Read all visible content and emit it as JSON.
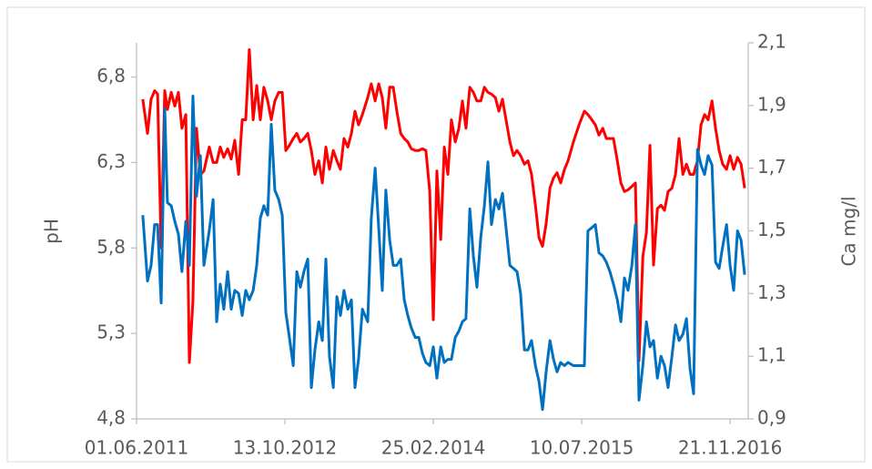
{
  "chart_data": {
    "type": "line",
    "ylabel": "pH",
    "y2label": "Ca mg/l",
    "x": [
      "2011-06-22",
      "2011-07-08",
      "2011-07-20",
      "2011-08-01",
      "2011-08-11",
      "2011-08-23",
      "2011-09-04",
      "2011-09-13",
      "2011-09-26",
      "2011-10-08",
      "2011-10-20",
      "2011-11-01",
      "2011-11-14",
      "2011-11-26",
      "2011-12-08",
      "2011-12-20",
      "2012-01-02",
      "2012-01-14",
      "2012-02-01",
      "2012-02-14",
      "2012-02-26",
      "2012-03-09",
      "2012-03-21",
      "2012-04-03",
      "2012-04-15",
      "2012-04-27",
      "2012-05-10",
      "2012-05-22",
      "2012-06-03",
      "2012-06-15",
      "2012-06-28",
      "2012-07-10",
      "2012-07-22",
      "2012-08-03",
      "2012-08-16",
      "2012-08-28",
      "2012-09-09",
      "2012-09-22",
      "2012-10-04",
      "2012-10-16",
      "2012-10-28",
      "2012-11-10",
      "2012-11-22",
      "2012-12-04",
      "2012-12-16",
      "2012-12-29",
      "2013-01-10",
      "2013-01-22",
      "2013-02-04",
      "2013-02-16",
      "2013-02-28",
      "2013-03-12",
      "2013-03-25",
      "2013-04-06",
      "2013-04-18",
      "2013-04-30",
      "2013-05-13",
      "2013-05-25",
      "2013-06-06",
      "2013-06-18",
      "2013-07-01",
      "2013-07-19",
      "2013-07-31",
      "2013-08-13",
      "2013-08-25",
      "2013-09-06",
      "2013-09-18",
      "2013-10-01",
      "2013-10-13",
      "2013-10-25",
      "2013-11-07",
      "2013-11-19",
      "2013-12-01",
      "2013-12-13",
      "2013-12-26",
      "2014-01-07",
      "2014-01-19",
      "2014-01-31",
      "2014-02-13",
      "2014-02-25",
      "2014-03-09",
      "2014-03-22",
      "2014-04-03",
      "2014-04-15",
      "2014-04-27",
      "2014-05-10",
      "2014-05-22",
      "2014-06-03",
      "2014-06-15",
      "2014-06-28",
      "2014-07-10",
      "2014-07-22",
      "2014-08-04",
      "2014-08-16",
      "2014-08-28",
      "2014-09-09",
      "2014-09-22",
      "2014-10-04",
      "2014-10-16",
      "2014-10-28",
      "2014-11-10",
      "2014-11-22",
      "2014-12-04",
      "2014-12-16",
      "2014-12-29",
      "2015-01-10",
      "2015-01-22",
      "2015-02-04",
      "2015-02-16",
      "2015-02-28",
      "2015-03-12",
      "2015-03-25",
      "2015-04-06",
      "2015-04-18",
      "2015-04-30",
      "2015-05-13",
      "2015-05-25",
      "2015-06-12",
      "2015-07-01",
      "2015-07-19",
      "2015-07-31",
      "2015-08-13",
      "2015-08-25",
      "2015-09-06",
      "2015-09-19",
      "2015-10-01",
      "2015-10-13",
      "2015-10-25",
      "2015-11-07",
      "2015-11-19",
      "2015-12-01",
      "2015-12-13",
      "2015-12-26",
      "2016-01-07",
      "2016-01-19",
      "2016-02-01",
      "2016-02-13",
      "2016-02-25",
      "2016-03-08",
      "2016-03-21",
      "2016-04-02",
      "2016-04-14",
      "2016-04-26",
      "2016-05-09",
      "2016-05-21",
      "2016-06-02",
      "2016-06-15",
      "2016-06-27",
      "2016-07-09",
      "2016-07-21",
      "2016-08-03",
      "2016-08-15",
      "2016-08-27",
      "2016-09-08",
      "2016-09-21",
      "2016-10-03",
      "2016-10-15",
      "2016-10-27",
      "2016-11-09",
      "2016-11-21",
      "2016-12-03",
      "2016-12-16",
      "2016-12-28",
      "2017-01-09"
    ],
    "series": [
      {
        "color": "#ff0000",
        "axis": "y",
        "values": [
          6.67,
          6.47,
          6.67,
          6.72,
          6.7,
          5.8,
          6.72,
          6.61,
          6.71,
          6.63,
          6.71,
          6.5,
          6.58,
          5.13,
          5.49,
          6.5,
          6.23,
          6.25,
          6.39,
          6.3,
          6.3,
          6.39,
          6.33,
          6.38,
          6.32,
          6.43,
          6.23,
          6.55,
          6.55,
          6.96,
          6.55,
          6.75,
          6.55,
          6.74,
          6.66,
          6.55,
          6.66,
          6.71,
          6.71,
          6.37,
          6.4,
          6.44,
          6.47,
          6.42,
          6.44,
          6.47,
          6.37,
          6.23,
          6.31,
          6.18,
          6.39,
          6.26,
          6.37,
          6.31,
          6.26,
          6.44,
          6.39,
          6.47,
          6.6,
          6.52,
          6.58,
          6.68,
          6.76,
          6.66,
          6.76,
          6.68,
          6.5,
          6.74,
          6.74,
          6.6,
          6.47,
          6.44,
          6.42,
          6.38,
          6.37,
          6.37,
          6.38,
          6.37,
          6.13,
          5.38,
          6.25,
          5.85,
          6.39,
          6.23,
          6.55,
          6.42,
          6.5,
          6.66,
          6.5,
          6.74,
          6.71,
          6.66,
          6.66,
          6.74,
          6.71,
          6.7,
          6.68,
          6.6,
          6.67,
          6.55,
          6.42,
          6.34,
          6.37,
          6.34,
          6.29,
          6.31,
          6.23,
          6.05,
          5.86,
          5.81,
          5.94,
          6.15,
          6.21,
          6.24,
          6.18,
          6.26,
          6.31,
          6.42,
          6.52,
          6.6,
          6.58,
          6.55,
          6.52,
          6.46,
          6.5,
          6.44,
          6.44,
          6.44,
          6.31,
          6.18,
          6.13,
          6.14,
          6.16,
          6.18,
          5.14,
          5.75,
          5.89,
          6.4,
          5.7,
          6.03,
          6.05,
          6.02,
          6.13,
          6.15,
          6.23,
          6.44,
          6.23,
          6.29,
          6.23,
          6.23,
          6.31,
          6.52,
          6.58,
          6.55,
          6.66,
          6.5,
          6.37,
          6.29,
          6.26,
          6.34,
          6.26,
          6.33,
          6.29,
          6.15
        ]
      },
      {
        "color": "#0070c0",
        "axis": "y2",
        "values": [
          1.55,
          1.34,
          1.39,
          1.52,
          1.52,
          1.27,
          1.89,
          1.59,
          1.58,
          1.53,
          1.49,
          1.37,
          1.53,
          1.39,
          1.93,
          1.61,
          1.74,
          1.39,
          1.5,
          1.6,
          1.21,
          1.33,
          1.25,
          1.37,
          1.25,
          1.31,
          1.3,
          1.23,
          1.31,
          1.28,
          1.31,
          1.39,
          1.54,
          1.58,
          1.55,
          1.84,
          1.63,
          1.6,
          1.55,
          1.24,
          1.16,
          1.07,
          1.37,
          1.32,
          1.37,
          1.41,
          1.0,
          1.12,
          1.21,
          1.15,
          1.41,
          1.1,
          1.0,
          1.29,
          1.23,
          1.31,
          1.25,
          1.28,
          1.0,
          1.09,
          1.25,
          1.21,
          1.54,
          1.7,
          1.51,
          1.31,
          1.63,
          1.47,
          1.39,
          1.39,
          1.41,
          1.28,
          1.23,
          1.19,
          1.16,
          1.16,
          1.11,
          1.08,
          1.07,
          1.13,
          1.03,
          1.13,
          1.08,
          1.09,
          1.09,
          1.16,
          1.18,
          1.21,
          1.22,
          1.57,
          1.42,
          1.32,
          1.48,
          1.58,
          1.72,
          1.52,
          1.6,
          1.57,
          1.62,
          1.51,
          1.39,
          1.38,
          1.37,
          1.3,
          1.12,
          1.12,
          1.15,
          1.07,
          1.02,
          0.93,
          1.05,
          1.15,
          1.09,
          1.05,
          1.08,
          1.07,
          1.08,
          1.07,
          1.07,
          1.07,
          1.5,
          1.51,
          1.52,
          1.43,
          1.42,
          1.4,
          1.37,
          1.33,
          1.28,
          1.21,
          1.35,
          1.31,
          1.39,
          1.52,
          0.96,
          1.07,
          1.21,
          1.13,
          1.15,
          1.03,
          1.1,
          1.07,
          1.0,
          1.1,
          1.2,
          1.15,
          1.17,
          1.22,
          1.06,
          0.98,
          1.76,
          1.71,
          1.68,
          1.74,
          1.71,
          1.4,
          1.38,
          1.45,
          1.52,
          1.39,
          1.31,
          1.5,
          1.47,
          1.36
        ]
      }
    ],
    "xlim": [
      "2011-06-01",
      "2017-01-21"
    ],
    "xticks": [
      {
        "value": "2011-06-01",
        "label": "01.06.2011"
      },
      {
        "value": "2012-10-13",
        "label": "13.10.2012"
      },
      {
        "value": "2014-02-25",
        "label": "25.02.2014"
      },
      {
        "value": "2015-07-10",
        "label": "10.07.2015"
      },
      {
        "value": "2016-11-21",
        "label": "21.11.2016"
      }
    ],
    "ylim": [
      4.8,
      7.0
    ],
    "yticks": [
      {
        "value": 4.8,
        "label": "4,8"
      },
      {
        "value": 5.3,
        "label": "5,3"
      },
      {
        "value": 5.8,
        "label": "5,8"
      },
      {
        "value": 6.3,
        "label": "6,3"
      },
      {
        "value": 6.8,
        "label": "6,8"
      }
    ],
    "y2lim": [
      0.9,
      2.1
    ],
    "y2ticks": [
      {
        "value": 0.9,
        "label": "0,9"
      },
      {
        "value": 1.1,
        "label": "1,1"
      },
      {
        "value": 1.3,
        "label": "1,3"
      },
      {
        "value": 1.5,
        "label": "1,5"
      },
      {
        "value": 1.7,
        "label": "1,7"
      },
      {
        "value": 1.9,
        "label": "1,9"
      },
      {
        "value": 2.1,
        "label": "2,1"
      }
    ],
    "grid": false
  }
}
